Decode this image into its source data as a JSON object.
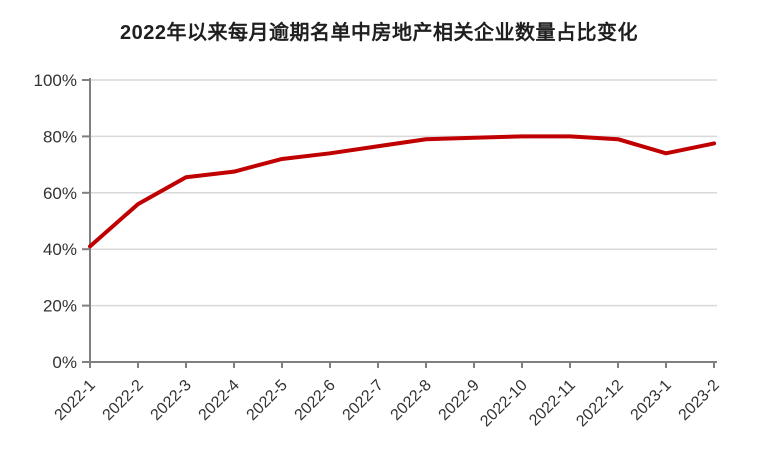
{
  "chart_data": {
    "type": "line",
    "title": "2022年以来每月逾期名单中房地产相关企业数量占比变化",
    "categories": [
      "2022-1",
      "2022-2",
      "2022-3",
      "2022-4",
      "2022-5",
      "2022-6",
      "2022-7",
      "2022-8",
      "2022-9",
      "2022-10",
      "2022-11",
      "2022-12",
      "2023-1",
      "2023-2"
    ],
    "values": [
      41,
      56,
      65.5,
      67.5,
      72,
      74,
      76.5,
      79,
      79.5,
      80,
      80,
      79,
      74,
      77.5
    ],
    "xlabel": "",
    "ylabel": "",
    "ylim": [
      0,
      100
    ],
    "yticks": [
      0,
      20,
      40,
      60,
      80,
      100
    ],
    "ytick_labels": [
      "0%",
      "20%",
      "40%",
      "60%",
      "80%",
      "100%"
    ],
    "grid": true,
    "legend": false,
    "line_color": "#C00000",
    "axis_color": "#808080",
    "grid_color": "#D9D9D9",
    "label_color": "#333333",
    "title_color": "#1F1F1F"
  }
}
